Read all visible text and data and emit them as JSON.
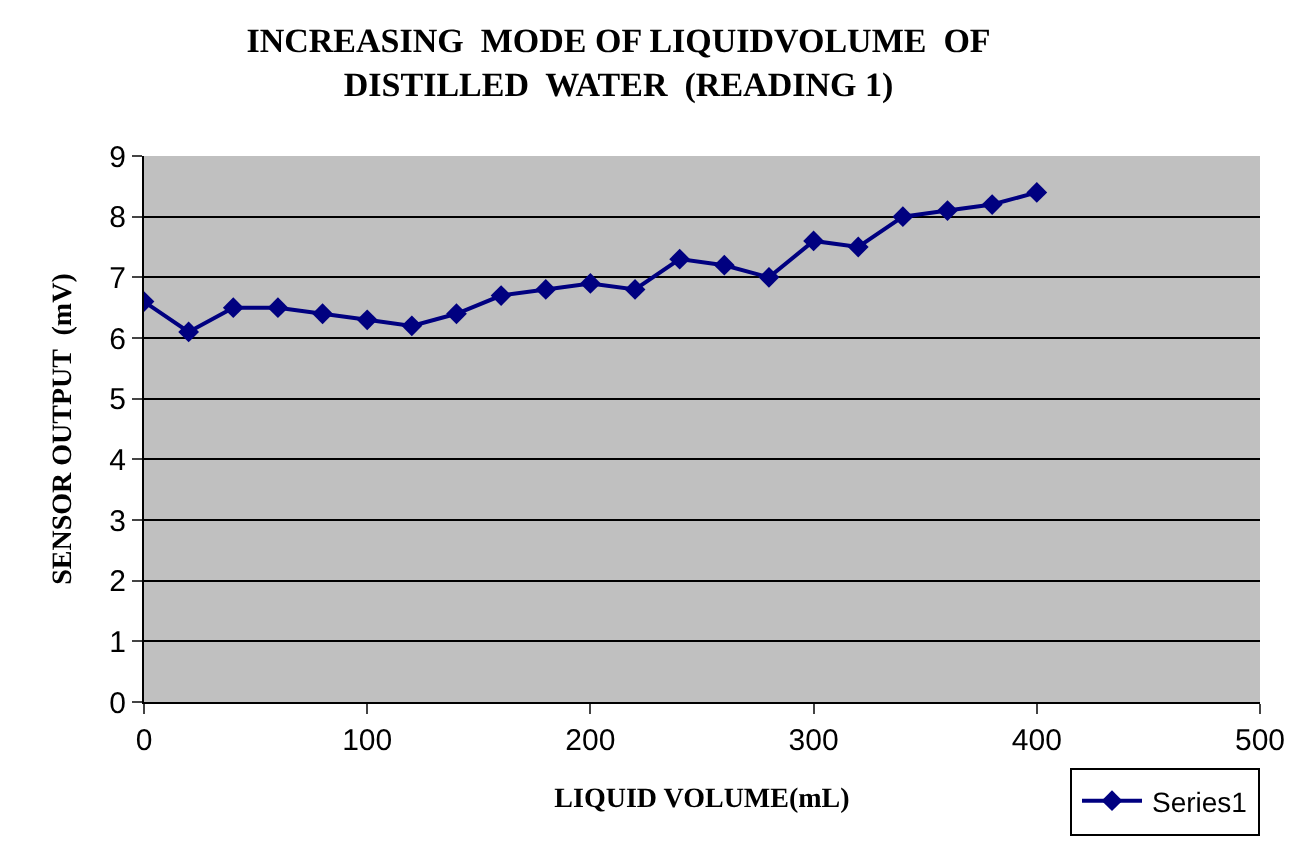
{
  "chart_data": {
    "type": "line",
    "title": "INCREASING  MODE OF LIQUIDVOLUME  OF\nDISTILLED  WATER  (READING 1)",
    "xlabel": "LIQUID VOLUME(mL)",
    "ylabel": "SENSOR OUTPUT  (mV)",
    "x": [
      0,
      20,
      40,
      60,
      80,
      100,
      120,
      140,
      160,
      180,
      200,
      220,
      240,
      260,
      280,
      300,
      320,
      340,
      360,
      380,
      400
    ],
    "series": [
      {
        "name": "Series1",
        "color": "#000080",
        "values": [
          6.6,
          6.1,
          6.5,
          6.5,
          6.4,
          6.3,
          6.2,
          6.4,
          6.7,
          6.8,
          6.9,
          6.8,
          7.3,
          7.2,
          7.0,
          7.6,
          7.5,
          8.0,
          8.1,
          8.2,
          8.4
        ]
      }
    ],
    "xlim": [
      0,
      500
    ],
    "xticks": [
      0,
      100,
      200,
      300,
      400,
      500
    ],
    "ylim": [
      0,
      9
    ],
    "yticks": [
      0,
      1,
      2,
      3,
      4,
      5,
      6,
      7,
      8,
      9
    ],
    "grid": "y",
    "legend": "bottom right",
    "marker": "diamond",
    "line_style": "solid"
  }
}
